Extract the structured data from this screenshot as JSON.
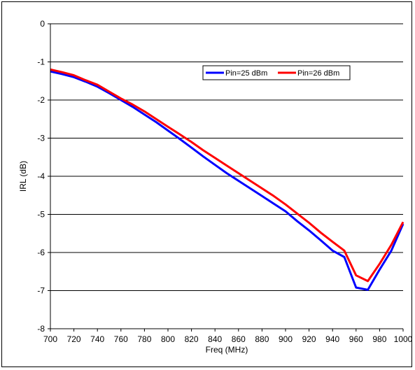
{
  "chart_data": {
    "type": "line",
    "title": "",
    "xlabel": "Freq (MHz)",
    "ylabel": "IRL (dB)",
    "xlim": [
      700,
      1000
    ],
    "ylim": [
      -8,
      0
    ],
    "x_ticks": [
      700,
      720,
      740,
      760,
      780,
      800,
      820,
      840,
      860,
      880,
      900,
      920,
      940,
      960,
      980,
      1000
    ],
    "y_ticks": [
      0,
      -1,
      -2,
      -3,
      -4,
      -5,
      -6,
      -7,
      -8
    ],
    "grid": "horizontal",
    "legend_position": "top-right",
    "series": [
      {
        "name": "Pin=25 dBm",
        "color": "#0000ff",
        "x": [
          700,
          710,
          720,
          730,
          740,
          750,
          760,
          770,
          780,
          790,
          800,
          810,
          820,
          830,
          840,
          850,
          860,
          870,
          880,
          890,
          900,
          910,
          920,
          930,
          940,
          950,
          960,
          970,
          980,
          990,
          1000
        ],
        "y": [
          -1.25,
          -1.32,
          -1.4,
          -1.52,
          -1.65,
          -1.82,
          -2.0,
          -2.18,
          -2.38,
          -2.58,
          -2.8,
          -3.02,
          -3.25,
          -3.48,
          -3.7,
          -3.92,
          -4.12,
          -4.32,
          -4.52,
          -4.72,
          -4.92,
          -5.18,
          -5.42,
          -5.68,
          -5.95,
          -6.12,
          -6.92,
          -6.98,
          -6.45,
          -5.95,
          -5.25
        ]
      },
      {
        "name": "Pin=26 dBm",
        "color": "#ff0000",
        "x": [
          700,
          710,
          720,
          730,
          740,
          750,
          760,
          770,
          780,
          790,
          800,
          810,
          820,
          830,
          840,
          850,
          860,
          870,
          880,
          890,
          900,
          910,
          920,
          930,
          940,
          950,
          960,
          970,
          980,
          990,
          1000
        ],
        "y": [
          -1.2,
          -1.27,
          -1.35,
          -1.48,
          -1.6,
          -1.78,
          -1.96,
          -2.12,
          -2.3,
          -2.5,
          -2.7,
          -2.9,
          -3.1,
          -3.32,
          -3.52,
          -3.72,
          -3.92,
          -4.12,
          -4.32,
          -4.52,
          -4.74,
          -4.98,
          -5.22,
          -5.48,
          -5.72,
          -5.95,
          -6.6,
          -6.75,
          -6.3,
          -5.8,
          -5.2
        ]
      }
    ]
  }
}
